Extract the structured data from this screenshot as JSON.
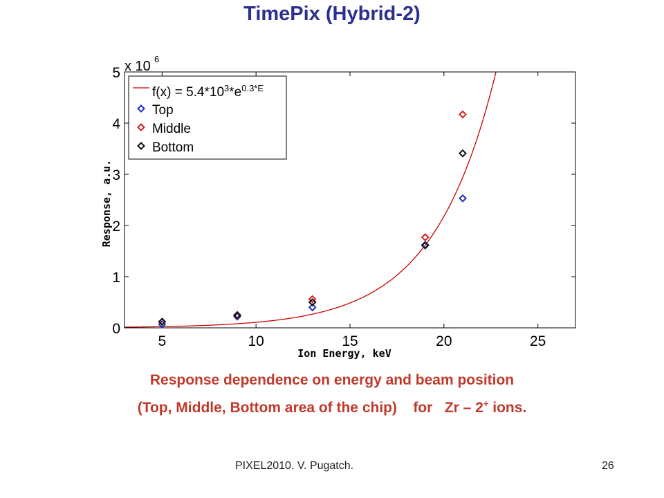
{
  "slide": {
    "title": "TimePix (Hybrid-2)",
    "caption_line1": "Response dependence on energy and beam position",
    "caption_line2_pre": "(Top, Middle, Bottom area of the chip)    for   Zr – 2",
    "caption_line2_sup": "+",
    "caption_line2_post": " ions.",
    "footer_left": "PIXEL2010. V. Pugatch.",
    "footer_right": "26"
  },
  "chart_data": {
    "type": "scatter",
    "xlabel": "Ion Energy, keV",
    "ylabel": "Response, a.u.",
    "y_multiplier_base": "x 10",
    "y_multiplier_exp": "6",
    "xlim": [
      3,
      27
    ],
    "ylim": [
      0,
      5
    ],
    "xticks": [
      5,
      10,
      15,
      20,
      25
    ],
    "yticks": [
      0,
      1,
      2,
      3,
      4,
      5
    ],
    "grid": false,
    "legend_position": "top-left",
    "fit": {
      "label_pre": "f(x) = 5.4*10",
      "label_sup1": "3",
      "label_mid": "*e",
      "label_sup2": "0.3*E",
      "amplitude": 5400,
      "rate": 0.3,
      "scale": 1000000,
      "color": "#cc0000"
    },
    "series": [
      {
        "name": "Top",
        "color": "#1f2fbf",
        "x": [
          5,
          9,
          13,
          19,
          21
        ],
        "y": [
          0.07,
          0.22,
          0.4,
          1.62,
          2.53
        ]
      },
      {
        "name": "Middle",
        "color": "#d42020",
        "x": [
          5,
          9,
          13,
          19,
          21
        ],
        "y": [
          0.12,
          0.24,
          0.56,
          1.77,
          4.17
        ]
      },
      {
        "name": "Bottom",
        "color": "#111111",
        "x": [
          5,
          9,
          13,
          19,
          21
        ],
        "y": [
          0.12,
          0.25,
          0.5,
          1.61,
          3.41
        ]
      }
    ]
  }
}
